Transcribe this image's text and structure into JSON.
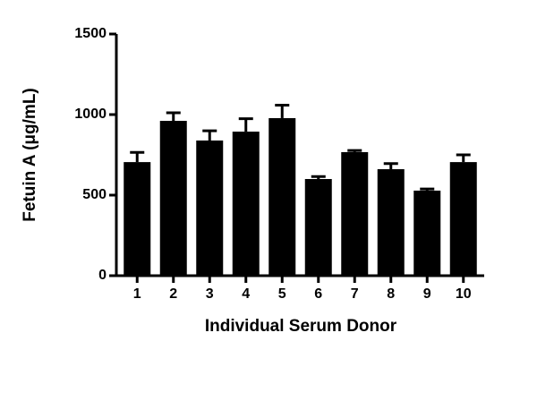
{
  "chart_data": {
    "type": "bar",
    "xlabel": "Individual Serum Donor",
    "ylabel": "Fetuin A (μg/mL)",
    "categories": [
      "1",
      "2",
      "3",
      "4",
      "5",
      "6",
      "7",
      "8",
      "9",
      "10"
    ],
    "values": [
      705,
      961,
      839,
      894,
      978,
      600,
      767,
      661,
      528,
      705
    ],
    "errors": [
      60,
      50,
      60,
      80,
      80,
      15,
      10,
      35,
      10,
      45
    ],
    "color": "#000000",
    "ylim": [
      0,
      1500
    ],
    "yticks": [
      0,
      500,
      1000,
      1500
    ]
  }
}
